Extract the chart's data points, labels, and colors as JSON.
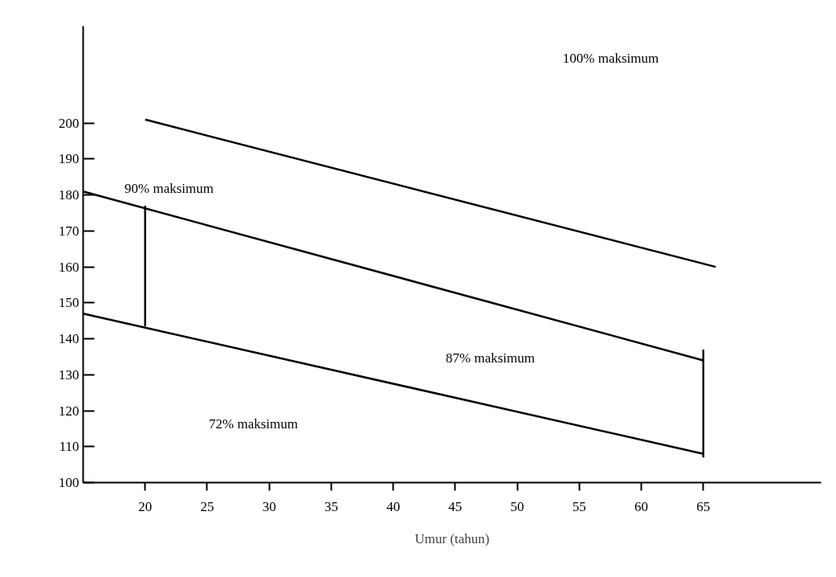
{
  "chart_data": {
    "type": "line",
    "xlabel": "Umur (tahun)",
    "xlim": [
      15,
      74.5
    ],
    "xticks": [
      20,
      25,
      30,
      35,
      40,
      45,
      50,
      55,
      60,
      65
    ],
    "ylim": [
      100,
      227
    ],
    "yticks": [
      100,
      110,
      120,
      130,
      140,
      150,
      160,
      170,
      180,
      190,
      200
    ],
    "grid": false,
    "marker": "none",
    "line_style": "solid",
    "series": [
      {
        "color": "#000000",
        "x": [
          20,
          66
        ],
        "values": [
          201,
          160
        ]
      },
      {
        "color": "#000000",
        "x": [
          15,
          65
        ],
        "values": [
          181,
          134
        ]
      },
      {
        "color": "#000000",
        "x": [
          15,
          65
        ],
        "values": [
          147,
          108
        ]
      },
      {
        "color": "#000000",
        "x": [
          20,
          20
        ],
        "values": [
          143.5,
          177
        ]
      },
      {
        "color": "#000000",
        "x": [
          65,
          65
        ],
        "values": [
          107,
          137
        ]
      }
    ],
    "annotations": [
      "100% maksimum",
      "90% maksimum",
      "87% maksimum",
      "72% maksimum"
    ]
  }
}
